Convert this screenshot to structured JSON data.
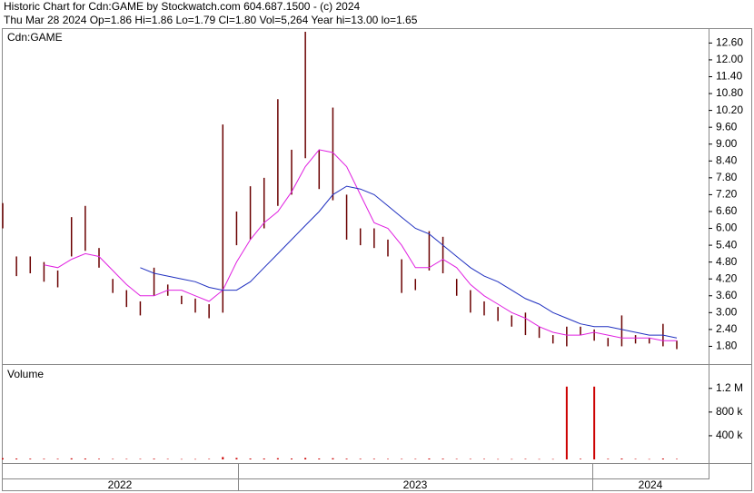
{
  "header": {
    "line1": "Historic Chart for Cdn:GAME by Stockwatch.com 604.687.1500 - (c) 2024",
    "line2": "Thu Mar 28 2024  Op=1.86  Hi=1.86  Lo=1.79  Cl=1.80  Vol=5,264  Year hi=13.00  lo=1.65"
  },
  "chart_data": [
    {
      "type": "ohlc",
      "label": "Cdn:GAME",
      "bars": {
        "color": "#6a0000",
        "high": [
          6.9,
          5.0,
          5.0,
          4.8,
          4.5,
          6.4,
          6.8,
          5.3,
          4.2,
          3.8,
          3.4,
          4.6,
          4.0,
          3.6,
          3.5,
          3.3,
          9.7,
          6.6,
          7.5,
          7.8,
          10.6,
          8.8,
          13.0,
          8.8,
          10.3,
          7.2,
          6.0,
          6.0,
          5.6,
          4.9,
          4.2,
          5.9,
          5.7,
          4.2,
          3.8,
          3.4,
          3.2,
          2.9,
          3.0,
          2.5,
          2.2,
          2.5,
          2.5,
          2.4,
          2.1,
          2.9,
          2.2,
          2.1,
          2.6,
          2.0
        ],
        "low": [
          6.0,
          4.3,
          4.4,
          4.1,
          3.9,
          5.0,
          5.2,
          4.6,
          3.7,
          3.2,
          2.9,
          3.6,
          3.6,
          3.3,
          3.0,
          2.8,
          3.0,
          5.4,
          5.6,
          6.0,
          6.8,
          7.2,
          8.5,
          7.4,
          7.0,
          5.6,
          5.4,
          5.3,
          5.0,
          3.7,
          3.8,
          4.5,
          4.4,
          3.6,
          3.0,
          2.9,
          2.7,
          2.5,
          2.2,
          2.1,
          1.9,
          1.8,
          2.2,
          2.0,
          1.8,
          1.8,
          1.9,
          1.9,
          1.8,
          1.7
        ]
      },
      "series": [
        {
          "color": "#e020e0",
          "values": [
            null,
            null,
            null,
            4.7,
            4.6,
            4.9,
            5.1,
            5.0,
            4.5,
            4.0,
            3.6,
            3.6,
            3.8,
            3.8,
            3.6,
            3.4,
            3.8,
            4.8,
            5.6,
            6.2,
            6.6,
            7.3,
            8.2,
            8.8,
            8.7,
            8.2,
            7.2,
            6.2,
            6.0,
            5.4,
            4.6,
            4.6,
            4.9,
            4.6,
            4.0,
            3.6,
            3.3,
            3.0,
            2.8,
            2.5,
            2.3,
            2.2,
            2.2,
            2.3,
            2.2,
            2.1,
            2.1,
            2.1,
            2.0,
            2.0
          ]
        },
        {
          "color": "#2030c0",
          "values": [
            null,
            null,
            null,
            null,
            null,
            null,
            null,
            null,
            null,
            null,
            4.6,
            4.4,
            4.3,
            4.2,
            4.1,
            3.9,
            3.8,
            3.8,
            4.1,
            4.6,
            5.1,
            5.6,
            6.1,
            6.6,
            7.2,
            7.5,
            7.4,
            7.2,
            6.8,
            6.4,
            6.0,
            5.8,
            5.4,
            5.0,
            4.6,
            4.3,
            4.1,
            3.8,
            3.5,
            3.3,
            3.0,
            2.8,
            2.6,
            2.5,
            2.5,
            2.4,
            2.3,
            2.2,
            2.2,
            2.1
          ]
        }
      ],
      "ylim": [
        1.2,
        13.0
      ],
      "yticks": [
        {
          "value": 1.8,
          "label": "1.80"
        },
        {
          "value": 2.4,
          "label": "2.40"
        },
        {
          "value": 3.0,
          "label": "3.00"
        },
        {
          "value": 3.6,
          "label": "3.60"
        },
        {
          "value": 4.2,
          "label": "4.20"
        },
        {
          "value": 4.8,
          "label": "4.80"
        },
        {
          "value": 5.4,
          "label": "5.40"
        },
        {
          "value": 6.0,
          "label": "6.00"
        },
        {
          "value": 6.6,
          "label": "6.60"
        },
        {
          "value": 7.2,
          "label": "7.20"
        },
        {
          "value": 7.8,
          "label": "7.80"
        },
        {
          "value": 8.4,
          "label": "8.40"
        },
        {
          "value": 9.0,
          "label": "9.00"
        },
        {
          "value": 9.6,
          "label": "9.60"
        },
        {
          "value": 10.2,
          "label": "10.20"
        },
        {
          "value": 10.8,
          "label": "10.80"
        },
        {
          "value": 11.4,
          "label": "11.40"
        },
        {
          "value": 12.0,
          "label": "12.00"
        },
        {
          "value": 12.6,
          "label": "12.60"
        }
      ]
    },
    {
      "type": "volume",
      "label": "Volume",
      "color": "#cc0000",
      "values": [
        20000,
        15000,
        12000,
        10000,
        10000,
        18000,
        15000,
        10000,
        8000,
        8000,
        8000,
        12000,
        8000,
        6000,
        6000,
        8000,
        40000,
        25000,
        15000,
        15000,
        20000,
        15000,
        25000,
        15000,
        20000,
        12000,
        10000,
        10000,
        8000,
        8000,
        8000,
        15000,
        12000,
        8000,
        8000,
        8000,
        6000,
        6000,
        8000,
        6000,
        6000,
        1230000,
        10000,
        1230000,
        10000,
        15000,
        8000,
        6000,
        15000,
        8000
      ],
      "ylim": [
        0,
        1580000
      ],
      "yticks": [
        {
          "value": 400000,
          "label": "400 k"
        },
        {
          "value": 800000,
          "label": "800 k"
        },
        {
          "value": 1200000,
          "label": "1.2 M"
        }
      ]
    }
  ],
  "x_axis": {
    "labels": [
      "2022",
      "2023",
      "2024"
    ]
  }
}
